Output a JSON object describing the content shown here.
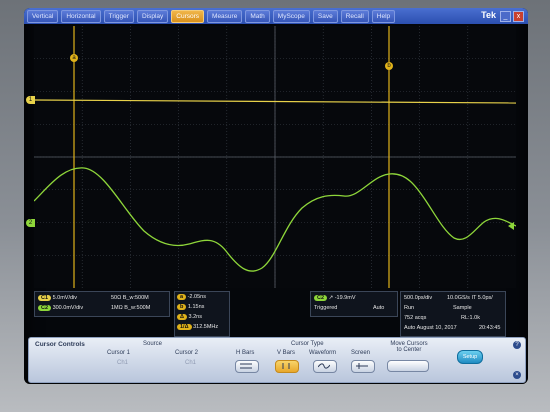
{
  "menu": {
    "items": [
      "Vertical",
      "Horizontal",
      "Trigger",
      "Display",
      "Cursors",
      "Measure",
      "Math",
      "MyScope",
      "Save",
      "Recall",
      "Help"
    ],
    "active": "Cursors"
  },
  "brand": "Tek",
  "window_buttons": [
    "_",
    "x"
  ],
  "markers": {
    "cursor_a": "a",
    "cursor_b": "b",
    "ch1": "1",
    "ch2": "2"
  },
  "colors": {
    "ch1": "#e8d24a",
    "ch2": "#8ed63a",
    "cursor": "#e0b21a",
    "menu_active": "#e7a52c"
  },
  "readouts": {
    "ch1": {
      "badge": "C1",
      "scale": "5.0mV/div",
      "coupling": "50Ω",
      "bw": "B_w:500M"
    },
    "ch2": {
      "badge": "C2",
      "scale": "300.0mV/div",
      "coupling": "1MΩ",
      "bw": "B_w:500M"
    },
    "cursor_values": [
      {
        "badge": "a",
        "value": "-2.05ns"
      },
      {
        "badge": "b",
        "value": "1.15ns"
      },
      {
        "badge": "Δ",
        "value": "3.2ns"
      },
      {
        "badge": "1/Δ",
        "value": "312.5MHz"
      }
    ],
    "trigger": {
      "badge": "C2",
      "level": "-19.9mV",
      "state": "Triggered",
      "mode": "Auto"
    },
    "timebase": {
      "hscale": "500.0ps/div",
      "rate": "10.0GS/s",
      "it": "IT",
      "ps": "5.0ps/",
      "run": "Run",
      "acq_mode": "Sample",
      "acqs": "752 acqs",
      "rl": "RL:1.0k",
      "auto": "Auto",
      "date": "August 10, 2017",
      "time": "20:43:45"
    }
  },
  "cursor_controls": {
    "title": "Cursor Controls",
    "source_label": "Source",
    "cursor1_label": "Cursor 1",
    "cursor1_value": "Ch1",
    "cursor2_label": "Cursor 2",
    "cursor2_value": "Ch1",
    "cursor_type_label": "Cursor Type",
    "types": [
      "H Bars",
      "V Bars",
      "Waveform",
      "Screen"
    ],
    "active_type": "V Bars",
    "move_label": "Move Cursors to Center",
    "setup_label": "Setup"
  }
}
